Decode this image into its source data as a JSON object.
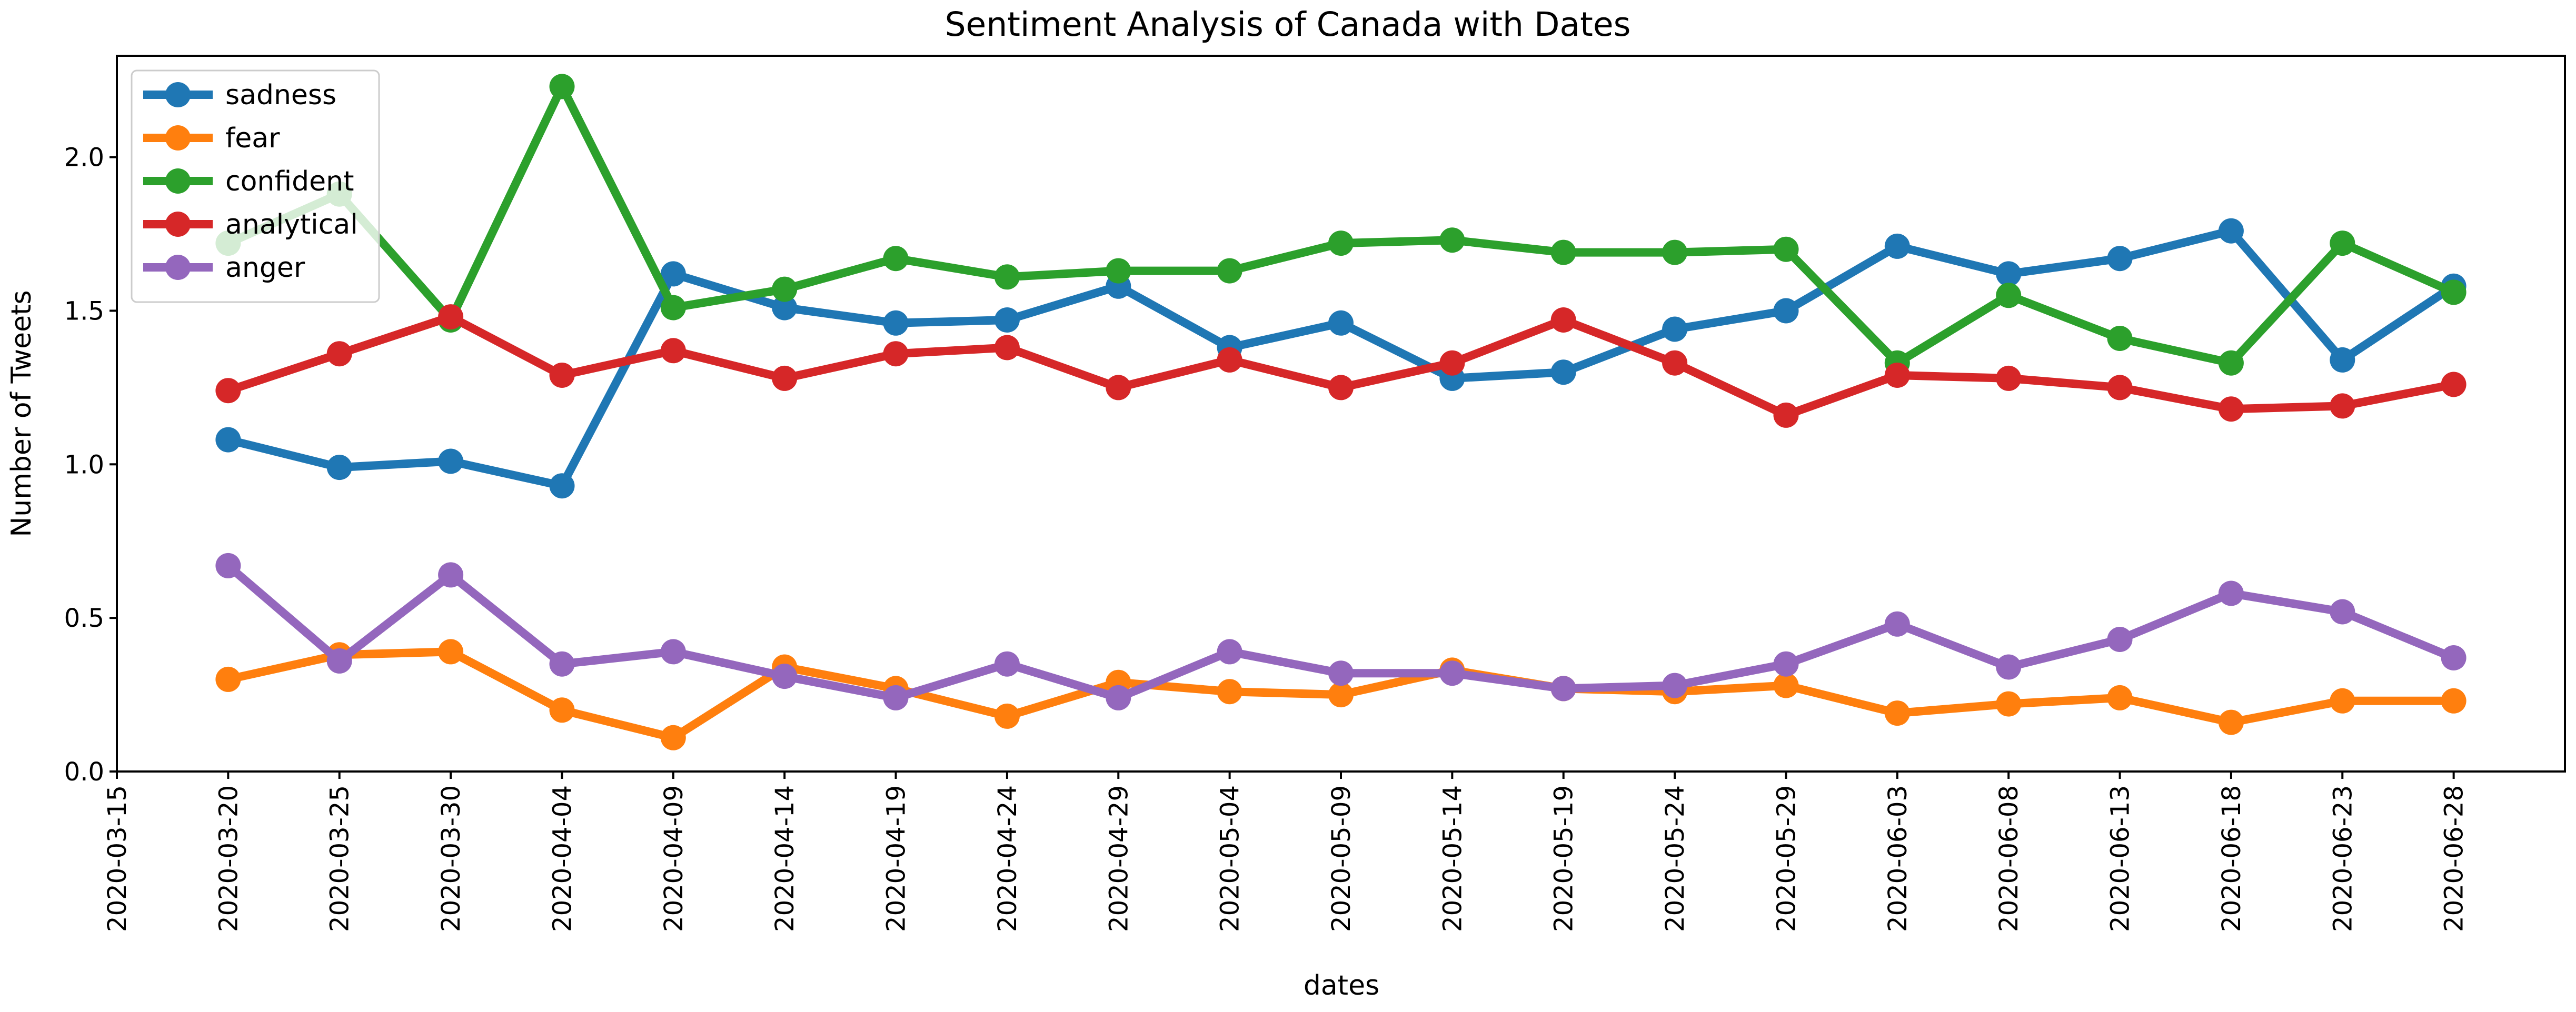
{
  "chart_data": {
    "type": "line",
    "title": "Sentiment Analysis of Canada with Dates",
    "xlabel": "dates",
    "ylabel": "Number of Tweets",
    "x_ticks": [
      "2020-03-15",
      "2020-03-20",
      "2020-03-25",
      "2020-03-30",
      "2020-04-04",
      "2020-04-09",
      "2020-04-14",
      "2020-04-19",
      "2020-04-24",
      "2020-04-29",
      "2020-05-04",
      "2020-05-09",
      "2020-05-14",
      "2020-05-19",
      "2020-05-24",
      "2020-05-29",
      "2020-06-03",
      "2020-06-08",
      "2020-06-13",
      "2020-06-18",
      "2020-06-23",
      "2020-06-28"
    ],
    "y_ticks": [
      0.0,
      0.5,
      1.0,
      1.5,
      2.0
    ],
    "y_tick_labels": [
      "0.0",
      "0.5",
      "1.0",
      "1.5",
      "2.0"
    ],
    "ylim": [
      0.0,
      2.33
    ],
    "xlim": [
      "2020-03-15",
      "2020-07-03"
    ],
    "grid": false,
    "legend_position": "upper-left",
    "x": [
      "2020-03-20",
      "2020-03-25",
      "2020-03-30",
      "2020-04-04",
      "2020-04-09",
      "2020-04-14",
      "2020-04-19",
      "2020-04-24",
      "2020-04-29",
      "2020-05-04",
      "2020-05-09",
      "2020-05-14",
      "2020-05-19",
      "2020-05-24",
      "2020-05-29",
      "2020-06-03",
      "2020-06-08",
      "2020-06-13",
      "2020-06-18",
      "2020-06-23",
      "2020-06-28"
    ],
    "series": [
      {
        "name": "sadness",
        "color": "#1f77b4",
        "values": [
          1.08,
          0.99,
          1.01,
          0.93,
          1.62,
          1.51,
          1.46,
          1.47,
          1.58,
          1.38,
          1.46,
          1.28,
          1.3,
          1.44,
          1.5,
          1.71,
          1.62,
          1.67,
          1.76,
          1.34,
          1.58
        ]
      },
      {
        "name": "fear",
        "color": "#ff7f0e",
        "values": [
          0.3,
          0.38,
          0.39,
          0.2,
          0.11,
          0.34,
          0.27,
          0.18,
          0.29,
          0.26,
          0.25,
          0.33,
          0.27,
          0.26,
          0.28,
          0.19,
          0.22,
          0.24,
          0.16,
          0.23,
          0.23
        ]
      },
      {
        "name": "confident",
        "color": "#2ca02c",
        "values": [
          1.72,
          1.88,
          1.47,
          2.23,
          1.51,
          1.57,
          1.67,
          1.61,
          1.63,
          1.63,
          1.72,
          1.73,
          1.69,
          1.69,
          1.7,
          1.33,
          1.55,
          1.41,
          1.33,
          1.72,
          1.56
        ]
      },
      {
        "name": "analytical",
        "color": "#d62728",
        "values": [
          1.24,
          1.36,
          1.48,
          1.29,
          1.37,
          1.28,
          1.36,
          1.38,
          1.25,
          1.34,
          1.25,
          1.33,
          1.47,
          1.33,
          1.16,
          1.29,
          1.28,
          1.25,
          1.18,
          1.19,
          1.26
        ]
      },
      {
        "name": "anger",
        "color": "#9467bd",
        "values": [
          0.67,
          0.36,
          0.64,
          0.35,
          0.39,
          0.31,
          0.24,
          0.35,
          0.24,
          0.39,
          0.32,
          0.32,
          0.27,
          0.28,
          0.35,
          0.48,
          0.34,
          0.43,
          0.58,
          0.52,
          0.37
        ]
      }
    ]
  }
}
